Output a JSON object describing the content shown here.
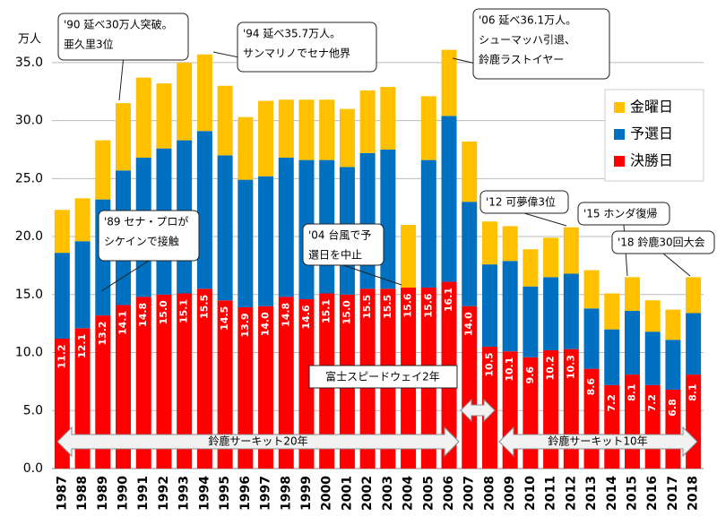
{
  "chart_data": {
    "type": "stacked_bar",
    "y_unit": "万人",
    "categories": [
      "1987",
      "1988",
      "1989",
      "1990",
      "1991",
      "1992",
      "1993",
      "1994",
      "1995",
      "1996",
      "1997",
      "1998",
      "1999",
      "2000",
      "2001",
      "2002",
      "2003",
      "2004",
      "2005",
      "2006",
      "2007",
      "2008",
      "2009",
      "2010",
      "2011",
      "2012",
      "2013",
      "2014",
      "2015",
      "2016",
      "2017",
      "2018"
    ],
    "series": [
      {
        "name": "決勝日",
        "color": "#ff0000",
        "values": [
          11.2,
          12.1,
          13.2,
          14.1,
          14.8,
          15.0,
          15.1,
          15.5,
          14.5,
          13.9,
          14.0,
          14.8,
          14.6,
          15.1,
          15.0,
          15.5,
          15.5,
          15.6,
          15.6,
          16.1,
          14.0,
          10.5,
          10.1,
          9.6,
          10.2,
          10.3,
          8.6,
          7.2,
          8.1,
          7.2,
          6.8,
          8.1
        ],
        "value_labels": [
          "11.2",
          "12.1",
          "13.2",
          "14.1",
          "14.8",
          "15.0",
          "15.1",
          "15.5",
          "14.5",
          "13.9",
          "14.0",
          "14.8",
          "14.6",
          "15.1",
          "15.0",
          "15.5",
          "15.5",
          "15.6",
          "15.6",
          "16.1",
          "14.0",
          "10.5",
          "10.1",
          "9.6",
          "10.2",
          "10.3",
          "8.6",
          "7.2",
          "8.1",
          "7.2",
          "6.8",
          "8.1"
        ]
      },
      {
        "name": "予選日",
        "color": "#0070c0",
        "values": [
          7.4,
          7.5,
          10.0,
          11.6,
          12.0,
          12.6,
          13.2,
          13.6,
          12.5,
          11.0,
          11.2,
          12.0,
          12.0,
          11.5,
          11.0,
          11.7,
          12.0,
          0,
          11.0,
          14.3,
          9.0,
          7.1,
          7.8,
          6.1,
          6.3,
          6.5,
          5.2,
          4.8,
          5.5,
          4.6,
          4.3,
          5.3
        ]
      },
      {
        "name": "金曜日",
        "color": "#ffc000",
        "values": [
          3.7,
          3.7,
          5.1,
          5.8,
          6.9,
          5.6,
          6.7,
          6.6,
          6.0,
          5.4,
          6.5,
          5.0,
          5.2,
          5.2,
          5.0,
          5.4,
          5.4,
          5.4,
          5.5,
          5.7,
          5.2,
          3.7,
          3.0,
          3.2,
          3.4,
          4.0,
          3.3,
          3.1,
          2.9,
          2.7,
          2.6,
          3.1
        ]
      }
    ],
    "ylim": [
      0,
      38
    ],
    "yticks": [
      {
        "value": 0,
        "label": "0.0"
      },
      {
        "value": 5,
        "label": "5.0"
      },
      {
        "value": 10,
        "label": "10.0"
      },
      {
        "value": 15,
        "label": "15.0"
      },
      {
        "value": 20,
        "label": "20.0"
      },
      {
        "value": 25,
        "label": "25.0"
      },
      {
        "value": 30,
        "label": "30.0"
      },
      {
        "value": 35,
        "label": "35.0"
      }
    ],
    "grid": true,
    "legend": "upper right",
    "annotations": [
      {
        "lines": [
          "'90 延べ30万人突破。",
          "亜久里3位"
        ]
      },
      {
        "lines": [
          "'94 延べ35.7万人。",
          "サンマリノでセナ他界"
        ]
      },
      {
        "lines": [
          "'06 延べ36.1万人。",
          "シューマッハ引退、",
          "鈴鹿ラストイヤー"
        ]
      },
      {
        "lines": [
          "'89 セナ・プロが",
          "シケインで接触"
        ]
      },
      {
        "lines": [
          "'04 台風で予",
          "選日を中止"
        ]
      },
      {
        "lines": [
          "'12 可夢偉3位"
        ]
      },
      {
        "lines": [
          "'15 ホンダ復帰"
        ]
      },
      {
        "lines": [
          "'18 鈴鹿30回大会"
        ]
      }
    ],
    "spans": [
      "鈴鹿サーキット20年",
      "富士スピードウェイ2年",
      "鈴鹿サーキット10年"
    ]
  }
}
